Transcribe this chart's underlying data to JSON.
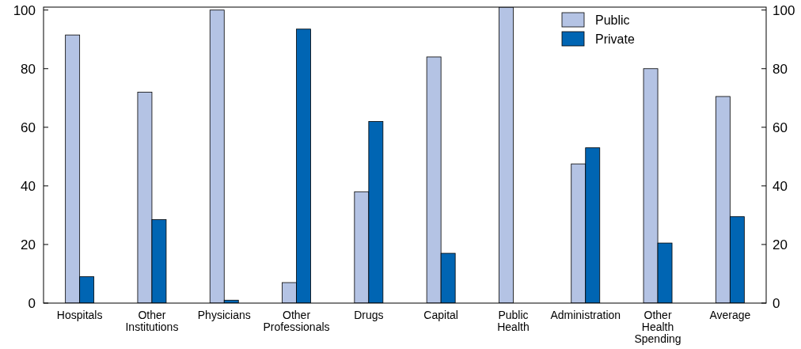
{
  "chart_data": {
    "type": "bar",
    "categories": [
      "Hospitals",
      "Other Institutions",
      "Physicians",
      "Other Professionals",
      "Drugs",
      "Capital",
      "Public Health",
      "Administration",
      "Other Health Spending",
      "Average"
    ],
    "series": [
      {
        "name": "Public",
        "color": "#b4c3e4",
        "values": [
          91.5,
          72,
          100,
          7,
          38,
          84,
          101,
          47.5,
          80,
          70.5
        ]
      },
      {
        "name": "Private",
        "color": "#0065b3",
        "values": [
          9,
          28.5,
          1,
          93.5,
          62,
          17,
          0,
          53,
          20.5,
          29.5
        ]
      }
    ],
    "ylim": [
      0,
      101
    ],
    "yticks": [
      0,
      20,
      40,
      60,
      80,
      100
    ],
    "y2lim": [
      0,
      101
    ],
    "y2ticks": [
      0,
      20,
      40,
      60,
      80,
      100
    ],
    "legend": "top right",
    "grid": false
  }
}
